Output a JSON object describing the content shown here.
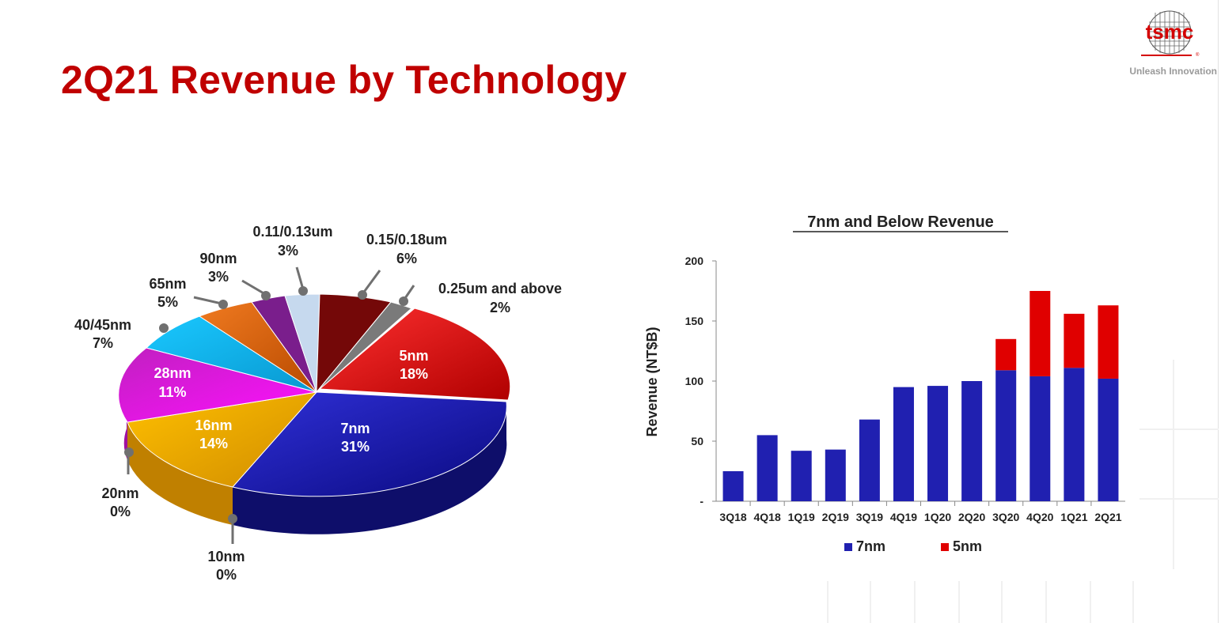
{
  "page": {
    "title": "2Q21 Revenue by Technology"
  },
  "logo": {
    "wordmark": "tsmc",
    "registered": "®",
    "tagline": "Unleash Innovation"
  },
  "chart_data": [
    {
      "type": "pie",
      "title": "",
      "style": "3d-exploded-pie",
      "slices": [
        {
          "label": "5nm",
          "value": 18,
          "display": "18%",
          "color": "#e00000"
        },
        {
          "label": "7nm",
          "value": 31,
          "display": "31%",
          "color": "#1c1caa"
        },
        {
          "label": "10nm",
          "value": 0,
          "display": "0%",
          "color": "#1c1caa"
        },
        {
          "label": "16nm",
          "value": 14,
          "display": "14%",
          "color": "#f0a800"
        },
        {
          "label": "20nm",
          "value": 0,
          "display": "0%",
          "color": "#f0a800"
        },
        {
          "label": "28nm",
          "value": 11,
          "display": "11%",
          "color": "#d010d0"
        },
        {
          "label": "40/45nm",
          "value": 7,
          "display": "7%",
          "color": "#10b4ec"
        },
        {
          "label": "65nm",
          "value": 5,
          "display": "5%",
          "color": "#e86a10"
        },
        {
          "label": "90nm",
          "value": 3,
          "display": "3%",
          "color": "#7a1e8c"
        },
        {
          "label": "0.11/0.13um",
          "value": 3,
          "display": "3%",
          "color": "#c0d6ee"
        },
        {
          "label": "0.15/0.18um",
          "value": 6,
          "display": "6%",
          "color": "#7a0a0a"
        },
        {
          "label": "0.25um and above",
          "value": 2,
          "display": "2%",
          "color": "#808080"
        }
      ]
    },
    {
      "type": "bar",
      "stacked": true,
      "title": "7nm and Below Revenue",
      "xlabel": "",
      "ylabel": "Revenue (NT$B)",
      "ylim": [
        0,
        200
      ],
      "yticks": [
        {
          "value": 0,
          "label": "-"
        },
        {
          "value": 50,
          "label": "50"
        },
        {
          "value": 100,
          "label": "100"
        },
        {
          "value": 150,
          "label": "150"
        },
        {
          "value": 200,
          "label": "200"
        }
      ],
      "categories": [
        "3Q18",
        "4Q18",
        "1Q19",
        "2Q19",
        "3Q19",
        "4Q19",
        "1Q20",
        "2Q20",
        "3Q20",
        "4Q20",
        "1Q21",
        "2Q21"
      ],
      "series": [
        {
          "name": "7nm",
          "color": "#2020b0",
          "values": [
            25,
            55,
            42,
            43,
            68,
            95,
            96,
            100,
            109,
            104,
            111,
            102
          ]
        },
        {
          "name": "5nm",
          "color": "#e00000",
          "values": [
            0,
            0,
            0,
            0,
            0,
            0,
            0,
            0,
            26,
            71,
            45,
            61
          ]
        }
      ],
      "legend": "bottom",
      "grid": false
    }
  ]
}
